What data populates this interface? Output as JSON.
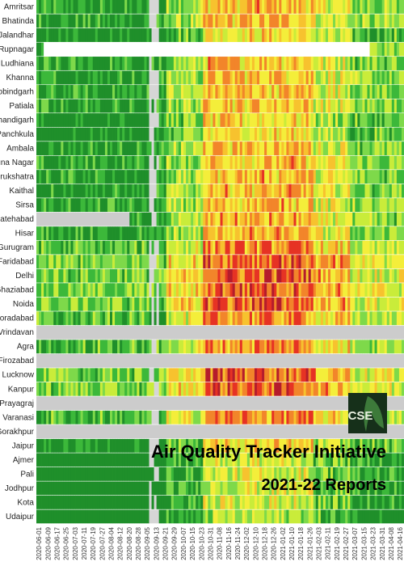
{
  "cities": [
    "Amritsar",
    "Bhatinda",
    "Jalandhar",
    "Rupnagar",
    "Ludhiana",
    "Khanna",
    "Mandi Gobindgarh",
    "Patiala",
    "Chandigarh",
    "Panchkula",
    "Ambala",
    "Yamuna Nagar",
    "Kurukshatra",
    "Kaithal",
    "Sirsa",
    "Fatehabad",
    "Hisar",
    "Gurugram",
    "Faridabad",
    "Delhi",
    "Ghaziabad",
    "Noida",
    "Moradabad",
    "Vrindavan",
    "Agra",
    "Firozabad",
    "Lucknow",
    "Kanpur",
    "Prayagraj",
    "Varanasi",
    "Gorakhpur",
    "Jaipur",
    "Ajmer",
    "Pali",
    "Jodhpur",
    "Kota",
    "Udaipur"
  ],
  "dates": [
    "2020-06-01",
    "2020-06-09",
    "2020-06-17",
    "2020-06-25",
    "2020-07-03",
    "2020-07-11",
    "2020-07-19",
    "2020-07-27",
    "2020-08-04",
    "2020-08-12",
    "2020-08-20",
    "2020-08-28",
    "2020-09-05",
    "2020-09-13",
    "2020-09-21",
    "2020-09-29",
    "2020-10-07",
    "2020-10-15",
    "2020-10-23",
    "2020-10-31",
    "2020-11-08",
    "2020-11-16",
    "2020-11-24",
    "2020-12-02",
    "2020-12-10",
    "2020-12-18",
    "2020-12-26",
    "2021-01-02",
    "2021-01-10",
    "2021-01-18",
    "2021-01-26",
    "2021-02-03",
    "2021-02-11",
    "2021-02-19",
    "2021-02-27",
    "2021-03-07",
    "2021-03-15",
    "2021-03-23",
    "2021-03-31",
    "2021-04-08",
    "2021-04-16"
  ],
  "logo": "CSE",
  "title": "Air Quality Tracker Initiative",
  "subtitle": "2021-22 Reports"
}
